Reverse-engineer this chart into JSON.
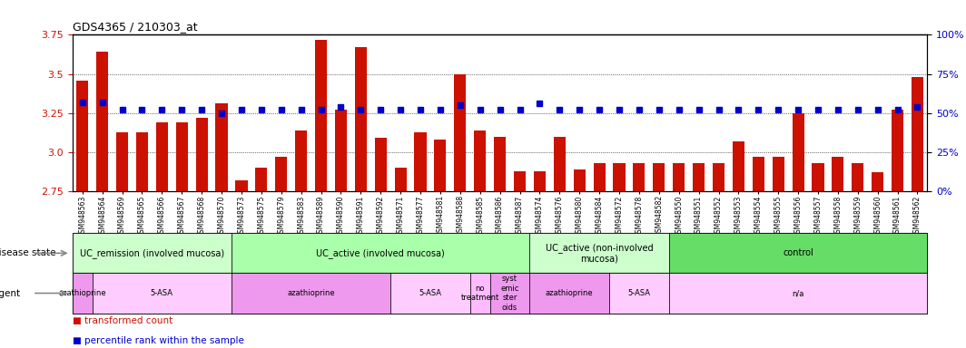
{
  "title": "GDS4365 / 210303_at",
  "samples": [
    "GSM948563",
    "GSM948564",
    "GSM948569",
    "GSM948565",
    "GSM948566",
    "GSM948567",
    "GSM948568",
    "GSM948570",
    "GSM948573",
    "GSM948575",
    "GSM948579",
    "GSM948583",
    "GSM948589",
    "GSM948590",
    "GSM948591",
    "GSM948592",
    "GSM948571",
    "GSM948577",
    "GSM948581",
    "GSM948588",
    "GSM948585",
    "GSM948586",
    "GSM948587",
    "GSM948574",
    "GSM948576",
    "GSM948580",
    "GSM948584",
    "GSM948572",
    "GSM948578",
    "GSM948582",
    "GSM948550",
    "GSM948551",
    "GSM948552",
    "GSM948553",
    "GSM948554",
    "GSM948555",
    "GSM948556",
    "GSM948557",
    "GSM948558",
    "GSM948559",
    "GSM948560",
    "GSM948561",
    "GSM948562"
  ],
  "bar_values": [
    3.46,
    3.64,
    3.13,
    3.13,
    3.19,
    3.19,
    3.22,
    3.31,
    2.82,
    2.9,
    2.97,
    3.14,
    3.72,
    3.27,
    3.67,
    3.09,
    2.9,
    3.13,
    3.08,
    3.5,
    3.14,
    3.1,
    2.88,
    2.88,
    3.1,
    2.89,
    2.93,
    2.93,
    2.93,
    2.93,
    2.93,
    2.93,
    2.93,
    3.07,
    2.97,
    2.97,
    3.25,
    2.93,
    2.97,
    2.93,
    2.87,
    3.27,
    3.48
  ],
  "percentile_values": [
    3.32,
    3.32,
    3.27,
    3.27,
    3.27,
    3.27,
    3.27,
    3.25,
    3.27,
    3.27,
    3.27,
    3.27,
    3.27,
    3.29,
    3.27,
    3.27,
    3.27,
    3.27,
    3.27,
    3.3,
    3.27,
    3.27,
    3.27,
    3.31,
    3.27,
    3.27,
    3.27,
    3.27,
    3.27,
    3.27,
    3.27,
    3.27,
    3.27,
    3.27,
    3.27,
    3.27,
    3.27,
    3.27,
    3.27,
    3.27,
    3.27,
    3.27,
    3.29
  ],
  "ylim": [
    2.75,
    3.75
  ],
  "yticks": [
    2.75,
    3.0,
    3.25,
    3.5,
    3.75
  ],
  "yticks_right": [
    0,
    25,
    50,
    75,
    100
  ],
  "bar_color": "#cc1100",
  "marker_color": "#0000cc",
  "bar_bottom": 2.75,
  "disease_state_groups": [
    {
      "label": "UC_remission (involved mucosa)",
      "start": 0,
      "end": 8,
      "color": "#ccffcc"
    },
    {
      "label": "UC_active (involved mucosa)",
      "start": 8,
      "end": 23,
      "color": "#aaffaa"
    },
    {
      "label": "UC_active (non-involved\nmucosa)",
      "start": 23,
      "end": 30,
      "color": "#ccffcc"
    },
    {
      "label": "control",
      "start": 30,
      "end": 43,
      "color": "#66dd66"
    }
  ],
  "agent_groups": [
    {
      "label": "azathioprine",
      "start": 0,
      "end": 1,
      "color": "#ee99ee"
    },
    {
      "label": "5-ASA",
      "start": 1,
      "end": 8,
      "color": "#ffccff"
    },
    {
      "label": "azathioprine",
      "start": 8,
      "end": 16,
      "color": "#ee99ee"
    },
    {
      "label": "5-ASA",
      "start": 16,
      "end": 20,
      "color": "#ffccff"
    },
    {
      "label": "no\ntreatment",
      "start": 20,
      "end": 21,
      "color": "#ffbbff"
    },
    {
      "label": "syst\nemic\nster\noids",
      "start": 21,
      "end": 23,
      "color": "#ee99ee"
    },
    {
      "label": "azathioprine",
      "start": 23,
      "end": 27,
      "color": "#ee99ee"
    },
    {
      "label": "5-ASA",
      "start": 27,
      "end": 30,
      "color": "#ffccff"
    },
    {
      "label": "n/a",
      "start": 30,
      "end": 43,
      "color": "#ffccff"
    }
  ]
}
